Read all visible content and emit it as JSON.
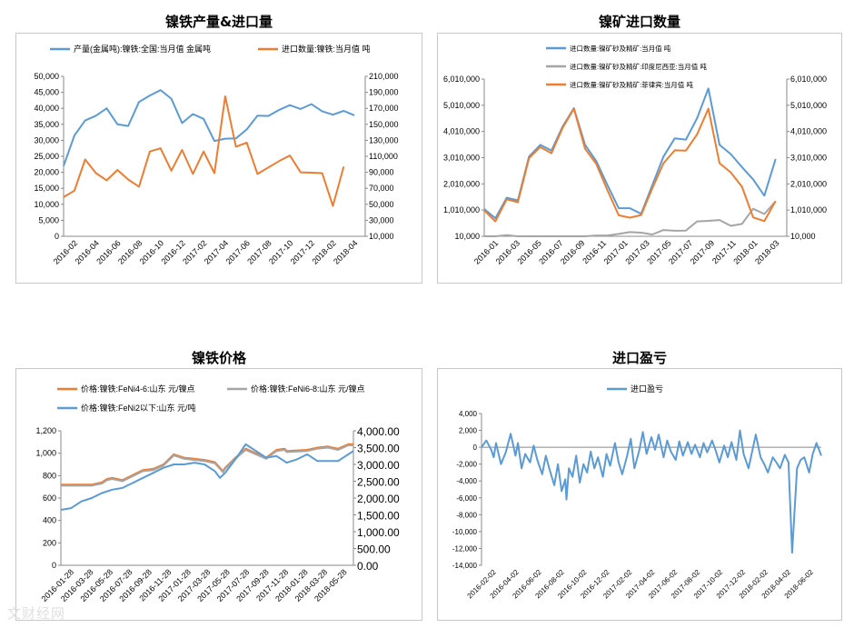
{
  "watermark": "文财经网",
  "chart_data": [
    {
      "id": "c1",
      "type": "line",
      "title": "镍铁产量&进口量",
      "x": [
        "2016-02",
        "2016-03",
        "2016-04",
        "2016-05",
        "2016-06",
        "2016-07",
        "2016-08",
        "2016-09",
        "2016-10",
        "2016-11",
        "2016-12",
        "2017-01",
        "2017-02",
        "2017-03",
        "2017-04",
        "2017-05",
        "2017-06",
        "2017-07",
        "2017-08",
        "2017-09",
        "2017-10",
        "2017-11",
        "2017-12",
        "2018-01",
        "2018-02",
        "2018-03",
        "2018-04",
        "2018-05"
      ],
      "xticks": [
        "2016-02",
        "2016-04",
        "2016-06",
        "2016-08",
        "2016-10",
        "2016-12",
        "2017-02",
        "2017-04",
        "2017-06",
        "2017-08",
        "2017-10",
        "2017-12",
        "2018-02",
        "2018-04"
      ],
      "ylim": [
        0,
        50000
      ],
      "yticks": [
        "0",
        "5,000",
        "10,000",
        "15,000",
        "20,000",
        "25,000",
        "30,000",
        "35,000",
        "40,000",
        "45,000",
        "50,000"
      ],
      "y2lim": [
        10000,
        210000
      ],
      "y2ticks": [
        "10,000",
        "30,000",
        "50,000",
        "70,000",
        "90,000",
        "110,000",
        "130,000",
        "150,000",
        "170,000",
        "190,000",
        "210,000"
      ],
      "series": [
        {
          "name": "产量(金属吨):镍铁:全国:当月值 金属吨",
          "color": "#5b9bd5",
          "axis": "left",
          "values": [
            22000,
            31500,
            36200,
            37700,
            40000,
            35000,
            34500,
            42000,
            44000,
            45700,
            43000,
            35400,
            38200,
            36700,
            29800,
            30500,
            30600,
            33400,
            37700,
            37600,
            39500,
            41000,
            39800,
            41300,
            39100,
            38000,
            39200,
            37800
          ]
        },
        {
          "name": "进口数量:镍铁:当月值 吨",
          "color": "#ed7d31",
          "axis": "right",
          "values": [
            59000,
            67000,
            106000,
            89000,
            80000,
            93000,
            81000,
            72000,
            116000,
            120000,
            92000,
            118000,
            88000,
            116000,
            89000,
            185000,
            122000,
            127000,
            88000,
            96000,
            104000,
            111000,
            90000,
            89500,
            89000,
            48000,
            97000,
            null
          ]
        }
      ]
    },
    {
      "id": "c2",
      "type": "line",
      "title": "镍矿进口数量",
      "x": [
        "2016-01",
        "2016-02",
        "2016-03",
        "2016-04",
        "2016-05",
        "2016-06",
        "2016-07",
        "2016-08",
        "2016-09",
        "2016-10",
        "2016-11",
        "2016-12",
        "2017-01",
        "2017-02",
        "2017-03",
        "2017-04",
        "2017-05",
        "2017-06",
        "2017-07",
        "2017-08",
        "2017-09",
        "2017-10",
        "2017-11",
        "2017-12",
        "2018-01",
        "2018-02",
        "2018-03"
      ],
      "xticks": [
        "2016-01",
        "2016-03",
        "2016-05",
        "2016-07",
        "2016-09",
        "2016-11",
        "2017-01",
        "2017-03",
        "2017-05",
        "2017-07",
        "2017-09",
        "2017-11",
        "2018-01",
        "2018-03"
      ],
      "ylim": [
        10000,
        6010000
      ],
      "yticks": [
        "10,000",
        "1,010,000",
        "2,010,000",
        "3,010,000",
        "4,010,000",
        "5,010,000",
        "6,010,000"
      ],
      "y2ticks": [
        "10,000",
        "1,010,000",
        "2,010,000",
        "3,010,000",
        "4,010,000",
        "5,010,000",
        "6,010,000"
      ],
      "series": [
        {
          "name": "进口数量:镍矿砂及精矿:当月值 吨",
          "color": "#5b9bd5",
          "axis": "left",
          "values": [
            1050000,
            700000,
            1480000,
            1380000,
            3050000,
            3500000,
            3280000,
            4200000,
            4900000,
            3500000,
            2880000,
            1960000,
            1080000,
            1080000,
            870000,
            1960000,
            3050000,
            3750000,
            3700000,
            4520000,
            5650000,
            3500000,
            3150000,
            2650000,
            2180000,
            1560000,
            2960000
          ]
        },
        {
          "name": "进口数量:镍矿砂及精矿:印度尼西亚:当月值 吨",
          "color": "#a5a5a5",
          "axis": "left",
          "values": [
            10000,
            10000,
            50000,
            10000,
            10000,
            10000,
            10000,
            10000,
            10000,
            10000,
            40000,
            40000,
            100000,
            170000,
            150000,
            80000,
            250000,
            220000,
            230000,
            580000,
            600000,
            630000,
            410000,
            480000,
            1060000,
            860000,
            1350000
          ]
        },
        {
          "name": "进口数量:镍矿砂及精矿:菲律宾:当月值 吨",
          "color": "#ed7d31",
          "axis": "left",
          "values": [
            1000000,
            580000,
            1420000,
            1310000,
            2990000,
            3420000,
            3180000,
            4150000,
            4880000,
            3350000,
            2770000,
            1760000,
            810000,
            720000,
            820000,
            1840000,
            2800000,
            3290000,
            3280000,
            3900000,
            4880000,
            2800000,
            2450000,
            1900000,
            730000,
            590000,
            1360000
          ]
        }
      ]
    },
    {
      "id": "c3",
      "type": "line",
      "title": "镍铁价格",
      "xticks": [
        "2016-01-28",
        "2016-03-28",
        "2016-05-28",
        "2016-07-28",
        "2016-09-28",
        "2016-11-28",
        "2017-01-28",
        "2017-03-28",
        "2017-05-28",
        "2017-07-28",
        "2017-09-28",
        "2017-11-28",
        "2018-01-28",
        "2018-03-28",
        "2018-05-28"
      ],
      "ylim": [
        0,
        1200
      ],
      "yticks": [
        "0",
        "200",
        "400",
        "600",
        "800",
        "1,000",
        "1,200"
      ],
      "y2lim": [
        0,
        4000
      ],
      "y2ticks": [
        "0.00",
        "500.00",
        "1,000.00",
        "1,500.00",
        "2,000.00",
        "2,500.00",
        "3,000.00",
        "3,500.00",
        "4,000.00"
      ],
      "series": [
        {
          "name": "价格:镍铁:FeNi4-6:山东 元/镍点",
          "color": "#ed7d31",
          "axis": "left",
          "x": [
            0,
            3,
            4,
            4.5,
            5,
            6,
            8,
            9,
            10,
            11,
            12,
            13,
            14,
            15,
            15.8,
            16,
            17,
            18,
            18.5,
            19,
            20,
            21,
            21.8,
            22,
            24,
            25,
            26,
            27,
            28,
            28.5
          ],
          "values": [
            720,
            720,
            740,
            770,
            780,
            760,
            850,
            860,
            900,
            990,
            960,
            950,
            940,
            920,
            840,
            870,
            960,
            1040,
            1020,
            1000,
            960,
            1030,
            1040,
            1020,
            1030,
            1050,
            1060,
            1040,
            1080,
            1080
          ]
        },
        {
          "name": "价格:镍铁:FeNi6-8:山东 元/镍点",
          "color": "#a5a5a5",
          "axis": "left",
          "x": [
            0,
            3,
            4,
            4.5,
            5,
            6,
            8,
            9,
            10,
            11,
            12,
            13,
            14,
            15,
            15.8,
            16,
            17,
            18,
            18.5,
            19,
            20,
            21,
            21.8,
            22,
            24,
            25,
            26,
            27,
            28,
            28.5
          ],
          "values": [
            710,
            710,
            730,
            760,
            770,
            750,
            840,
            850,
            890,
            980,
            950,
            940,
            930,
            910,
            830,
            860,
            950,
            1030,
            1010,
            990,
            950,
            1020,
            1030,
            1010,
            1020,
            1040,
            1050,
            1030,
            1070,
            1070
          ]
        },
        {
          "name": "价格:镍铁:FeNi2以下:山东 元/吨",
          "color": "#5b9bd5",
          "axis": "right",
          "x": [
            0,
            1,
            2,
            3,
            4,
            5,
            6,
            7,
            8,
            9,
            10,
            11,
            12,
            13,
            14,
            15,
            15.5,
            16,
            17,
            18,
            18.5,
            19,
            20,
            21,
            22,
            23,
            24,
            25,
            26,
            27,
            27.5,
            28,
            28.5
          ],
          "values": [
            1650,
            1700,
            1900,
            2000,
            2150,
            2250,
            2300,
            2450,
            2600,
            2750,
            2900,
            3000,
            3000,
            3050,
            3000,
            2800,
            2600,
            2750,
            3150,
            3600,
            3500,
            3400,
            3200,
            3250,
            3050,
            3150,
            3300,
            3100,
            3100,
            3100,
            3200,
            3300,
            3400
          ]
        }
      ]
    },
    {
      "id": "c4",
      "type": "line",
      "title": "进口盈亏",
      "xticks": [
        "2016-02-02",
        "2016-04-02",
        "2016-06-02",
        "2016-08-02",
        "2016-10-02",
        "2016-12-02",
        "2017-02-02",
        "2017-04-02",
        "2017-06-02",
        "2017-08-02",
        "2017-10-02",
        "2017-12-02",
        "2018-02-02",
        "2018-04-02",
        "2018-06-02"
      ],
      "ylim": [
        -14000,
        4000
      ],
      "yticks": [
        "-14,000",
        "-12,000",
        "-10,000",
        "-8,000",
        "-6,000",
        "-4,000",
        "-2,000",
        "0",
        "2,000",
        "4,000"
      ],
      "series": [
        {
          "name": "进口盈亏",
          "color": "#5b9bd5",
          "axis": "left",
          "x": [
            0,
            0.4,
            0.8,
            1.0,
            1.2,
            1.6,
            2.0,
            2.4,
            2.8,
            3.0,
            3.3,
            3.6,
            4.0,
            4.3,
            4.6,
            5.0,
            5.3,
            5.6,
            6.0,
            6.3,
            6.6,
            6.9,
            7.0,
            7.2,
            7.5,
            7.8,
            8.1,
            8.4,
            8.7,
            9.0,
            9.3,
            9.6,
            10.0,
            10.3,
            10.6,
            11.0,
            11.3,
            11.6,
            12.0,
            12.3,
            12.6,
            13.0,
            13.3,
            13.6,
            14.0,
            14.3,
            14.6,
            15.0,
            15.3,
            15.6,
            16.0,
            16.3,
            16.6,
            17.0,
            17.3,
            17.6,
            18.0,
            18.3,
            18.6,
            19.0,
            19.3,
            19.6,
            20.0,
            20.3,
            20.6,
            21.0,
            21.3,
            21.6,
            22.0,
            22.3,
            22.6,
            23.0,
            23.3,
            23.6,
            24.0,
            24.3,
            24.6,
            25.0,
            25.3,
            25.6,
            26.0,
            26.3,
            26.6,
            27.0,
            27.3,
            27.6,
            28.0
          ],
          "values": [
            0,
            800,
            -300,
            -1200,
            500,
            -2000,
            -600,
            1600,
            -1000,
            500,
            -2500,
            -800,
            -1800,
            200,
            -1500,
            -3200,
            -1000,
            -2600,
            -4500,
            -2000,
            -5200,
            -3800,
            -6200,
            -2500,
            -3500,
            -1000,
            -4200,
            -2000,
            -3000,
            -500,
            -2500,
            -1200,
            -3500,
            -800,
            -2200,
            500,
            -1800,
            -3200,
            -1000,
            1000,
            -2500,
            -400,
            1800,
            -800,
            1200,
            -300,
            1500,
            -1200,
            800,
            -500,
            -1500,
            700,
            -1000,
            600,
            -800,
            300,
            -1200,
            500,
            -600,
            800,
            -400,
            -1800,
            200,
            -1200,
            600,
            -1500,
            2000,
            -800,
            -2500,
            -500,
            1500,
            -1200,
            -2000,
            -3000,
            -1200,
            -1800,
            -2500,
            -900,
            -1800,
            -12500,
            -2500,
            -1500,
            -1200,
            -3000,
            -800,
            500,
            -1000
          ]
        }
      ]
    }
  ]
}
